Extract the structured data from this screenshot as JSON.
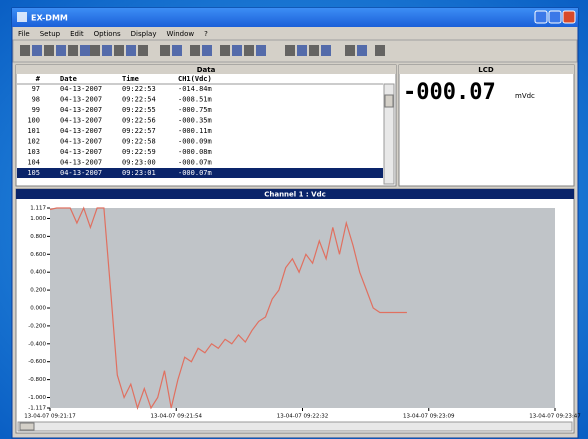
{
  "window": {
    "title": "EX-DMM"
  },
  "menu": [
    "File",
    "Setup",
    "Edit",
    "Options",
    "Display",
    "Window",
    "?"
  ],
  "data_panel": {
    "title": "Data",
    "columns": [
      "#",
      "Date",
      "Time",
      "CH1(Vdc)"
    ],
    "rows": [
      [
        "97",
        "04-13-2007",
        "09:22:53",
        "-014.84m"
      ],
      [
        "98",
        "04-13-2007",
        "09:22:54",
        "-008.51m"
      ],
      [
        "99",
        "04-13-2007",
        "09:22:55",
        "-000.75m"
      ],
      [
        "100",
        "04-13-2007",
        "09:22:56",
        "-000.35m"
      ],
      [
        "101",
        "04-13-2007",
        "09:22:57",
        "-000.11m"
      ],
      [
        "102",
        "04-13-2007",
        "09:22:58",
        "-000.09m"
      ],
      [
        "103",
        "04-13-2007",
        "09:22:59",
        "-000.08m"
      ],
      [
        "104",
        "04-13-2007",
        "09:23:00",
        "-000.07m"
      ],
      [
        "105",
        "04-13-2007",
        "09:23:01",
        "-000.07m"
      ]
    ]
  },
  "lcd_panel": {
    "title": "LCD",
    "value": "-000.07",
    "unit": "mVdc"
  },
  "plot": {
    "title": "Channel 1 : Vdc",
    "color": "#e07060",
    "ylim": [
      -1.117,
      1.117
    ],
    "yticks": [
      {
        "value": -1.117,
        "label": "-1.117"
      },
      {
        "value": -1,
        "label": "-1.000"
      },
      {
        "value": -0.8,
        "label": "-0.800"
      },
      {
        "value": -0.6,
        "label": "-0.600"
      },
      {
        "value": -0.4,
        "label": "-0.400"
      },
      {
        "value": -0.2,
        "label": "-0.200"
      },
      {
        "value": 0,
        "label": "0.000"
      },
      {
        "value": 0.2,
        "label": "0.200"
      },
      {
        "value": 0.4,
        "label": "0.400"
      },
      {
        "value": 0.6,
        "label": "0.600"
      },
      {
        "value": 0.8,
        "label": "0.800"
      },
      {
        "value": 1,
        "label": "1.000"
      },
      {
        "value": 1.117,
        "label": "1.117"
      }
    ],
    "xlim": [
      0,
      150
    ],
    "xticks": [
      {
        "value": 0,
        "label": "13-04-07 09:21:17"
      },
      {
        "value": 37.5,
        "label": "13-04-07 09:21:54"
      },
      {
        "value": 75,
        "label": "13-04-07 09:22:32"
      },
      {
        "value": 112.5,
        "label": "13-04-07 09:23:09"
      },
      {
        "value": 150,
        "label": "13-04-07 09:23:47"
      }
    ],
    "x": [
      0,
      2,
      4,
      6,
      8,
      10,
      12,
      14,
      16,
      18,
      20,
      22,
      24,
      26,
      28,
      30,
      32,
      34,
      36,
      38,
      40,
      42,
      44,
      46,
      48,
      50,
      52,
      54,
      56,
      58,
      60,
      62,
      64,
      66,
      68,
      70,
      72,
      74,
      76,
      78,
      80,
      82,
      84,
      86,
      88,
      90,
      92,
      94,
      96,
      98,
      100,
      102,
      104,
      106
    ],
    "values": [
      1.1,
      1.117,
      1.117,
      1.117,
      0.95,
      1.117,
      0.9,
      1.117,
      1.117,
      0.2,
      -0.75,
      -1.0,
      -0.85,
      -1.117,
      -0.9,
      -1.117,
      -1.0,
      -0.7,
      -1.117,
      -0.8,
      -0.55,
      -0.6,
      -0.45,
      -0.5,
      -0.4,
      -0.45,
      -0.35,
      -0.4,
      -0.3,
      -0.38,
      -0.25,
      -0.15,
      -0.1,
      0.1,
      0.2,
      0.45,
      0.55,
      0.4,
      0.6,
      0.5,
      0.75,
      0.55,
      0.9,
      0.6,
      0.95,
      0.7,
      0.4,
      0.2,
      0.0,
      -0.05,
      -0.05,
      -0.05,
      -0.05,
      -0.05
    ]
  }
}
